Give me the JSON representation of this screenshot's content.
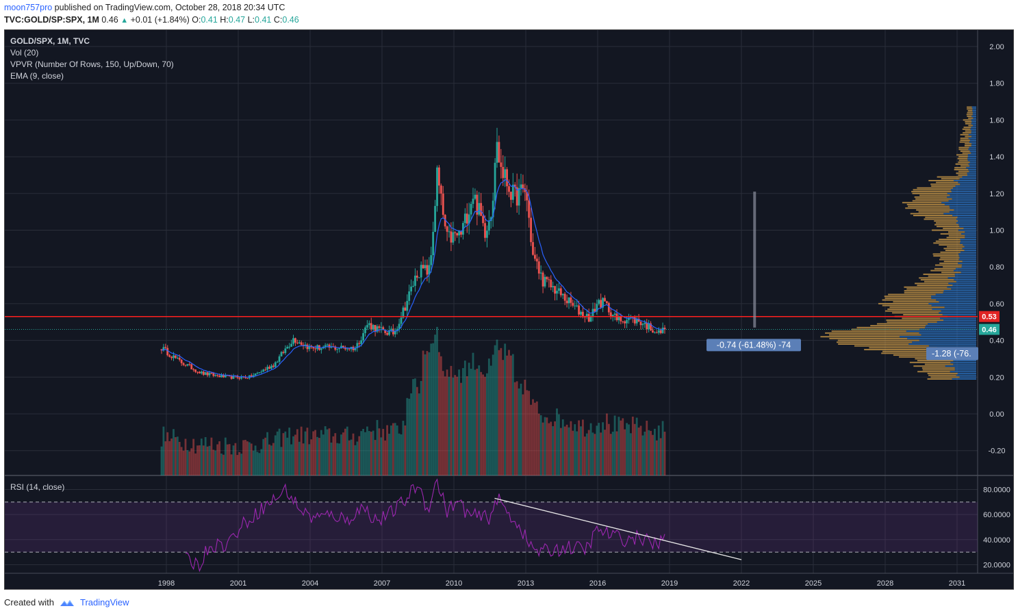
{
  "header": {
    "user": "moon757pro",
    "published_text": " published on TradingView.com, October 28, 2018 20:34 UTC",
    "symbol": "TVC:GOLD/SP:SPX, 1M",
    "last": "0.46",
    "change": "+0.01 (+1.84%)",
    "o_label": "O:",
    "o_val": "0.41",
    "h_label": "H:",
    "h_val": "0.47",
    "l_label": "L:",
    "l_val": "0.41",
    "c_label": "C:",
    "c_val": "0.46"
  },
  "legend": {
    "title": "GOLD/SPX, 1M, TVC",
    "vol": "Vol (20)",
    "vpvr": "VPVR (Number Of Rows, 150, Up/Down, 70)",
    "ema": "EMA (9, close)",
    "rsi": "RSI (14, close)"
  },
  "footer": {
    "created_with": "Created with",
    "brand": "TradingView"
  },
  "colors": {
    "background": "#131722",
    "up": "#26a69a",
    "down": "#ef5350",
    "ema": "#2962ff",
    "hline": "#ff1f1f",
    "rsi": "#9c27b0",
    "vpvr_up": "#2f7fd6",
    "vpvr_down": "#d4a04a"
  },
  "chart_data": [
    {
      "type": "candlestick",
      "title": "GOLD/SPX, 1M, TVC",
      "y_ticks": [
        "2.00",
        "1.80",
        "1.60",
        "1.40",
        "1.20",
        "1.00",
        "0.80",
        "0.60",
        "0.40",
        "0.20",
        "0.00",
        "-0.20"
      ],
      "ylim": [
        -0.33,
        2.08
      ],
      "x_ticks": [
        "1998",
        "2001",
        "2004",
        "2007",
        "2010",
        "2013",
        "2016",
        "2019",
        "2022",
        "2025",
        "2028",
        "2031"
      ],
      "xlim": [
        1996.2,
        2031.9
      ],
      "key_points": {
        "x": [
          1997.8,
          1998.5,
          1999.5,
          2000.5,
          2001.5,
          2002.5,
          2003.3,
          2004.0,
          2005.0,
          2005.9,
          2006.4,
          2007.0,
          2007.5,
          2008.0,
          2008.5,
          2009.0,
          2009.3,
          2009.7,
          2010.3,
          2010.8,
          2011.3,
          2011.6,
          2011.75,
          2012.0,
          2012.5,
          2013.0,
          2013.3,
          2013.7,
          2014.2,
          2014.7,
          2015.2,
          2015.7,
          2016.0,
          2016.3,
          2016.8,
          2017.3,
          2017.8,
          2018.2,
          2018.55,
          2018.8
        ],
        "close": [
          0.36,
          0.29,
          0.22,
          0.2,
          0.2,
          0.27,
          0.41,
          0.36,
          0.36,
          0.36,
          0.49,
          0.45,
          0.44,
          0.6,
          0.78,
          0.78,
          1.3,
          0.95,
          0.98,
          1.2,
          1.0,
          1.13,
          1.48,
          1.32,
          1.18,
          1.22,
          0.86,
          0.73,
          0.68,
          0.62,
          0.56,
          0.52,
          0.61,
          0.6,
          0.51,
          0.52,
          0.5,
          0.47,
          0.44,
          0.46
        ]
      },
      "last_value": 0.46,
      "ema": "EMA (9, close)",
      "horizontal_line": 0.53,
      "price_labels": [
        "0.53",
        "0.46"
      ],
      "measure_label": "-0.74 (-61.48%) -74",
      "vpvr_label": "-1.28 (-76.",
      "volume": "Vol (20)",
      "vpvr": "VPVR (Number Of Rows, 150, Up/Down, 70)"
    },
    {
      "type": "line",
      "title": "RSI (14, close)",
      "y_ticks": [
        "80.0000",
        "60.0000",
        "40.0000",
        "20.0000"
      ],
      "ylim": [
        13,
        90
      ],
      "bands": [
        30,
        70
      ],
      "key_points": {
        "x": [
          1998.8,
          1999.4,
          1999.8,
          2000.5,
          2001.2,
          2001.8,
          2002.5,
          2003.0,
          2003.5,
          2004.0,
          2004.5,
          2005.0,
          2005.5,
          2006.2,
          2006.8,
          2007.3,
          2008.0,
          2008.5,
          2008.9,
          2009.3,
          2009.7,
          2010.2,
          2010.6,
          2011.0,
          2011.5,
          2011.8,
          2012.3,
          2012.8,
          2013.1,
          2013.6,
          2014.2,
          2014.8,
          2015.5,
          2016.0,
          2016.5,
          2017.2,
          2017.8,
          2018.4,
          2018.8
        ],
        "y": [
          24,
          20,
          36,
          36,
          52,
          62,
          72,
          80,
          66,
          58,
          58,
          60,
          55,
          66,
          55,
          60,
          72,
          85,
          64,
          87,
          63,
          70,
          60,
          58,
          58,
          73,
          60,
          50,
          36,
          30,
          32,
          34,
          32,
          48,
          44,
          40,
          42,
          36,
          40
        ]
      },
      "trendline": {
        "x": [
          2011.7,
          2022.0
        ],
        "y": [
          73,
          24
        ]
      }
    }
  ]
}
